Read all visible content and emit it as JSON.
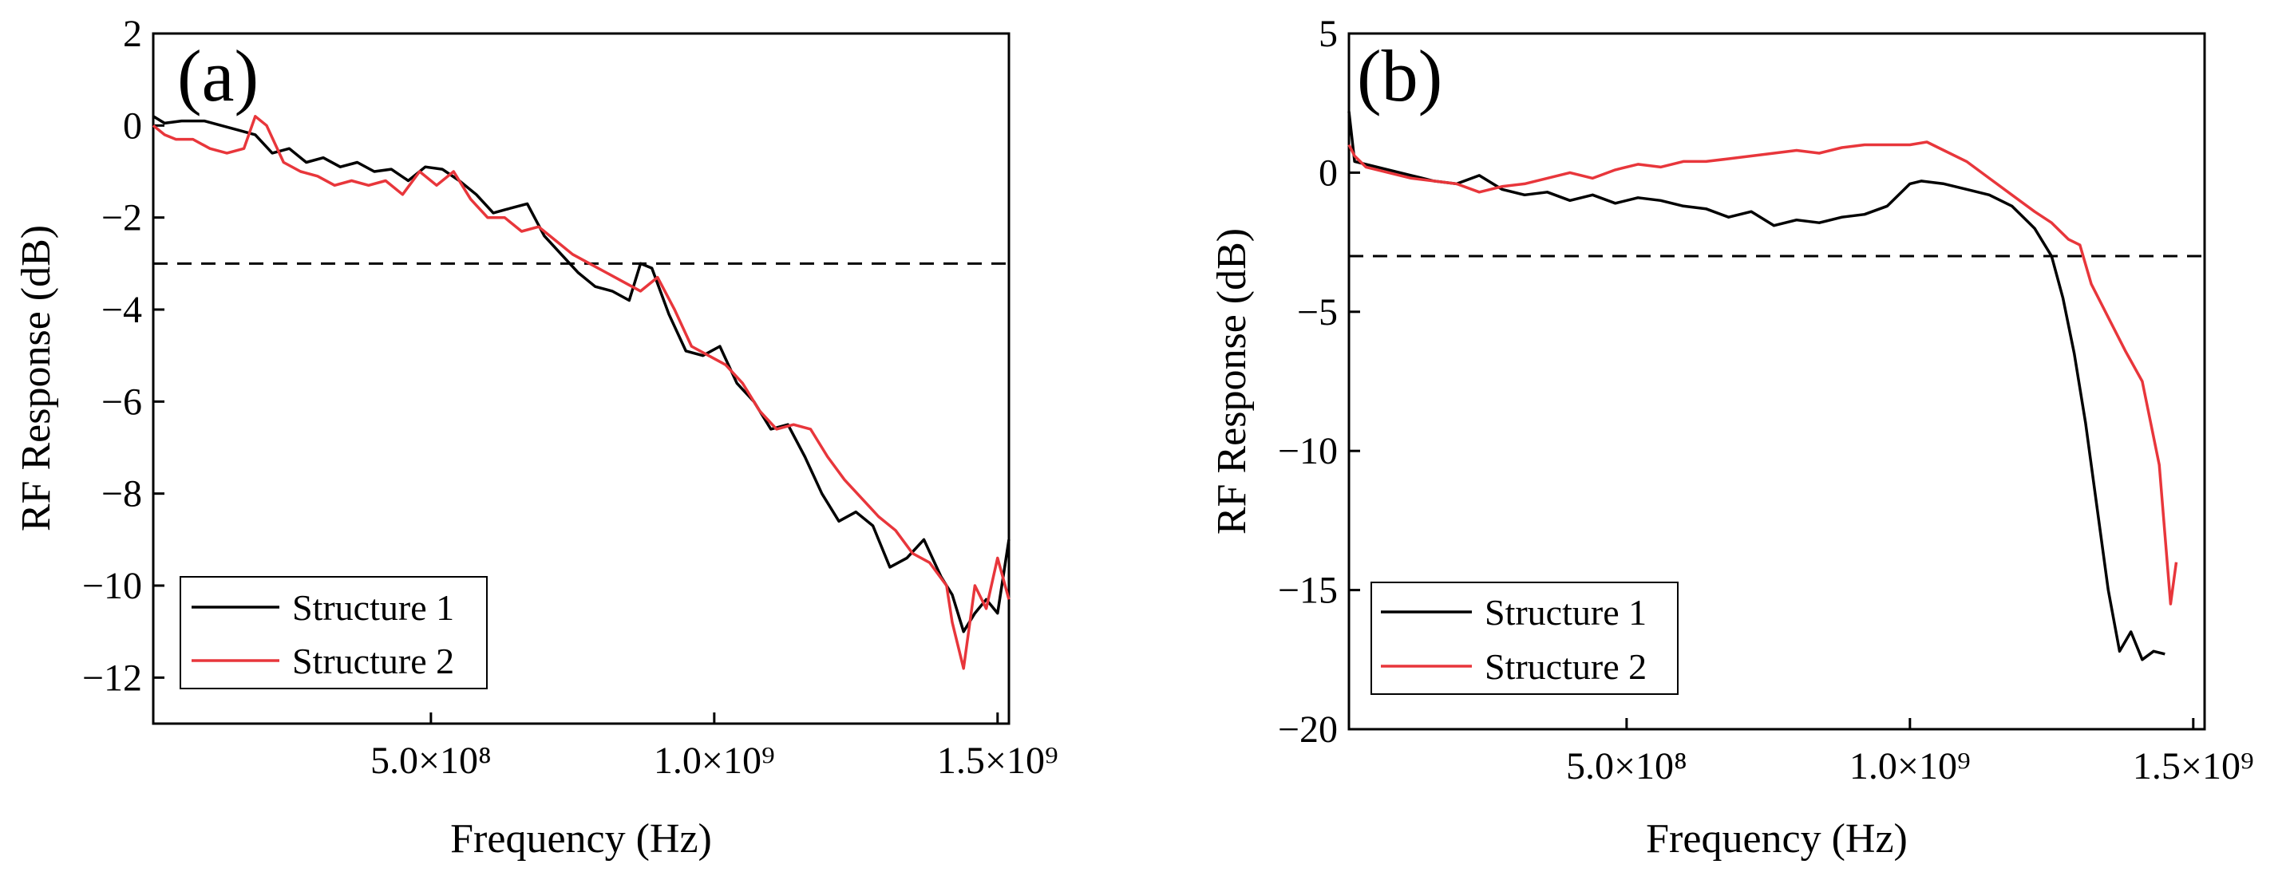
{
  "chart_data": [
    {
      "type": "line",
      "panel_label": "(a)",
      "xlabel": "Frequency (Hz)",
      "ylabel": "RF Response (dB)",
      "xlim": [
        10000000.0,
        1520000000.0
      ],
      "ylim": [
        -13,
        2
      ],
      "xticks": [
        {
          "value": 500000000.0,
          "label": "5.0×10⁸"
        },
        {
          "value": 1000000000.0,
          "label": "1.0×10⁹"
        },
        {
          "value": 1500000000.0,
          "label": "1.5×10⁹"
        }
      ],
      "yticks": [
        {
          "value": 2,
          "label": "2"
        },
        {
          "value": 0,
          "label": "0"
        },
        {
          "value": -2,
          "label": "−2"
        },
        {
          "value": -4,
          "label": "−4"
        },
        {
          "value": -6,
          "label": "−6"
        },
        {
          "value": -8,
          "label": "−8"
        },
        {
          "value": -10,
          "label": "−10"
        },
        {
          "value": -12,
          "label": "−12"
        }
      ],
      "reference_line_y": -3,
      "legend_position": "bottom-left",
      "series": [
        {
          "name": "Structure 1",
          "color": "#000000",
          "x": [
            10000000.0,
            30000000.0,
            60000000.0,
            100000000.0,
            130000000.0,
            160000000.0,
            190000000.0,
            220000000.0,
            250000000.0,
            280000000.0,
            310000000.0,
            340000000.0,
            370000000.0,
            400000000.0,
            430000000.0,
            460000000.0,
            490000000.0,
            520000000.0,
            550000000.0,
            580000000.0,
            610000000.0,
            640000000.0,
            670000000.0,
            700000000.0,
            730000000.0,
            760000000.0,
            790000000.0,
            820000000.0,
            850000000.0,
            870000000.0,
            890000000.0,
            920000000.0,
            950000000.0,
            980000000.0,
            1010000000.0,
            1040000000.0,
            1070000000.0,
            1100000000.0,
            1130000000.0,
            1160000000.0,
            1190000000.0,
            1220000000.0,
            1250000000.0,
            1280000000.0,
            1310000000.0,
            1340000000.0,
            1370000000.0,
            1400000000.0,
            1420000000.0,
            1440000000.0,
            1460000000.0,
            1480000000.0,
            1500000000.0,
            1520000000.0
          ],
          "y": [
            0.2,
            0.05,
            0.1,
            0.1,
            0.0,
            -0.1,
            -0.2,
            -0.6,
            -0.5,
            -0.8,
            -0.7,
            -0.9,
            -0.8,
            -1.0,
            -0.95,
            -1.2,
            -0.9,
            -0.95,
            -1.2,
            -1.5,
            -1.9,
            -1.8,
            -1.7,
            -2.4,
            -2.8,
            -3.2,
            -3.5,
            -3.6,
            -3.8,
            -3.0,
            -3.1,
            -4.1,
            -4.9,
            -5.0,
            -4.8,
            -5.6,
            -6.0,
            -6.6,
            -6.5,
            -7.2,
            -8.0,
            -8.6,
            -8.4,
            -8.7,
            -9.6,
            -9.4,
            -9.0,
            -9.8,
            -10.2,
            -11.0,
            -10.6,
            -10.3,
            -10.6,
            -9.0
          ]
        },
        {
          "name": "Structure 2",
          "color": "#e8363b",
          "x": [
            10000000.0,
            30000000.0,
            50000000.0,
            80000000.0,
            110000000.0,
            140000000.0,
            170000000.0,
            190000000.0,
            210000000.0,
            240000000.0,
            270000000.0,
            300000000.0,
            330000000.0,
            360000000.0,
            390000000.0,
            420000000.0,
            450000000.0,
            480000000.0,
            510000000.0,
            540000000.0,
            570000000.0,
            600000000.0,
            630000000.0,
            660000000.0,
            690000000.0,
            720000000.0,
            750000000.0,
            780000000.0,
            810000000.0,
            840000000.0,
            870000000.0,
            900000000.0,
            930000000.0,
            960000000.0,
            990000000.0,
            1020000000.0,
            1050000000.0,
            1080000000.0,
            1110000000.0,
            1140000000.0,
            1170000000.0,
            1200000000.0,
            1230000000.0,
            1260000000.0,
            1290000000.0,
            1320000000.0,
            1350000000.0,
            1380000000.0,
            1410000000.0,
            1420000000.0,
            1440000000.0,
            1460000000.0,
            1480000000.0,
            1500000000.0,
            1520000000.0
          ],
          "y": [
            0.0,
            -0.2,
            -0.3,
            -0.3,
            -0.5,
            -0.6,
            -0.5,
            0.2,
            0.0,
            -0.8,
            -1.0,
            -1.1,
            -1.3,
            -1.2,
            -1.3,
            -1.2,
            -1.5,
            -1.0,
            -1.3,
            -1.0,
            -1.6,
            -2.0,
            -2.0,
            -2.3,
            -2.2,
            -2.5,
            -2.8,
            -3.0,
            -3.2,
            -3.4,
            -3.6,
            -3.3,
            -4.0,
            -4.8,
            -5.0,
            -5.2,
            -5.6,
            -6.2,
            -6.6,
            -6.5,
            -6.6,
            -7.2,
            -7.7,
            -8.1,
            -8.5,
            -8.8,
            -9.3,
            -9.5,
            -10.0,
            -10.8,
            -11.8,
            -10.0,
            -10.5,
            -9.4,
            -10.3
          ]
        }
      ]
    },
    {
      "type": "line",
      "panel_label": "(b)",
      "xlabel": "Frequency (Hz)",
      "ylabel": "RF Response (dB)",
      "xlim": [
        10000000.0,
        1520000000.0
      ],
      "ylim": [
        -20,
        5
      ],
      "xticks": [
        {
          "value": 500000000.0,
          "label": "5.0×10⁸"
        },
        {
          "value": 1000000000.0,
          "label": "1.0×10⁹"
        },
        {
          "value": 1500000000.0,
          "label": "1.5×10⁹"
        }
      ],
      "yticks": [
        {
          "value": 5,
          "label": "5"
        },
        {
          "value": 0,
          "label": "0"
        },
        {
          "value": -5,
          "label": "−5"
        },
        {
          "value": -10,
          "label": "−10"
        },
        {
          "value": -15,
          "label": "−15"
        },
        {
          "value": -20,
          "label": "−20"
        }
      ],
      "reference_line_y": -3,
      "legend_position": "bottom-left",
      "series": [
        {
          "name": "Structure 1",
          "color": "#000000",
          "x": [
            10000000.0,
            20000000.0,
            40000000.0,
            80000000.0,
            120000000.0,
            160000000.0,
            200000000.0,
            240000000.0,
            280000000.0,
            320000000.0,
            360000000.0,
            400000000.0,
            440000000.0,
            480000000.0,
            520000000.0,
            560000000.0,
            600000000.0,
            640000000.0,
            680000000.0,
            720000000.0,
            760000000.0,
            800000000.0,
            840000000.0,
            880000000.0,
            920000000.0,
            960000000.0,
            1000000000.0,
            1020000000.0,
            1060000000.0,
            1100000000.0,
            1140000000.0,
            1180000000.0,
            1220000000.0,
            1250000000.0,
            1270000000.0,
            1290000000.0,
            1310000000.0,
            1330000000.0,
            1350000000.0,
            1370000000.0,
            1390000000.0,
            1410000000.0,
            1430000000.0,
            1450000000.0
          ],
          "y": [
            2.2,
            0.4,
            0.3,
            0.1,
            -0.1,
            -0.3,
            -0.4,
            -0.1,
            -0.6,
            -0.8,
            -0.7,
            -1.0,
            -0.8,
            -1.1,
            -0.9,
            -1.0,
            -1.2,
            -1.3,
            -1.6,
            -1.4,
            -1.9,
            -1.7,
            -1.8,
            -1.6,
            -1.5,
            -1.2,
            -0.4,
            -0.3,
            -0.4,
            -0.6,
            -0.8,
            -1.2,
            -2.0,
            -3.0,
            -4.5,
            -6.5,
            -9.0,
            -12.0,
            -15.0,
            -17.2,
            -16.5,
            -17.5,
            -17.2,
            -17.3
          ]
        },
        {
          "name": "Structure 2",
          "color": "#e8363b",
          "x": [
            10000000.0,
            20000000.0,
            40000000.0,
            80000000.0,
            120000000.0,
            160000000.0,
            200000000.0,
            240000000.0,
            280000000.0,
            320000000.0,
            360000000.0,
            400000000.0,
            440000000.0,
            480000000.0,
            520000000.0,
            560000000.0,
            600000000.0,
            640000000.0,
            680000000.0,
            720000000.0,
            760000000.0,
            800000000.0,
            840000000.0,
            880000000.0,
            920000000.0,
            960000000.0,
            1000000000.0,
            1030000000.0,
            1060000000.0,
            1100000000.0,
            1140000000.0,
            1180000000.0,
            1220000000.0,
            1250000000.0,
            1280000000.0,
            1300000000.0,
            1320000000.0,
            1350000000.0,
            1380000000.0,
            1410000000.0,
            1440000000.0,
            1460000000.0,
            1470000000.0
          ],
          "y": [
            1.0,
            0.6,
            0.2,
            0.0,
            -0.2,
            -0.3,
            -0.4,
            -0.7,
            -0.5,
            -0.4,
            -0.2,
            0.0,
            -0.2,
            0.1,
            0.3,
            0.2,
            0.4,
            0.4,
            0.5,
            0.6,
            0.7,
            0.8,
            0.7,
            0.9,
            1.0,
            1.0,
            1.0,
            1.1,
            0.8,
            0.4,
            -0.2,
            -0.8,
            -1.4,
            -1.8,
            -2.4,
            -2.6,
            -4.0,
            -5.2,
            -6.4,
            -7.5,
            -10.5,
            -15.5,
            -14.0
          ]
        }
      ]
    }
  ]
}
